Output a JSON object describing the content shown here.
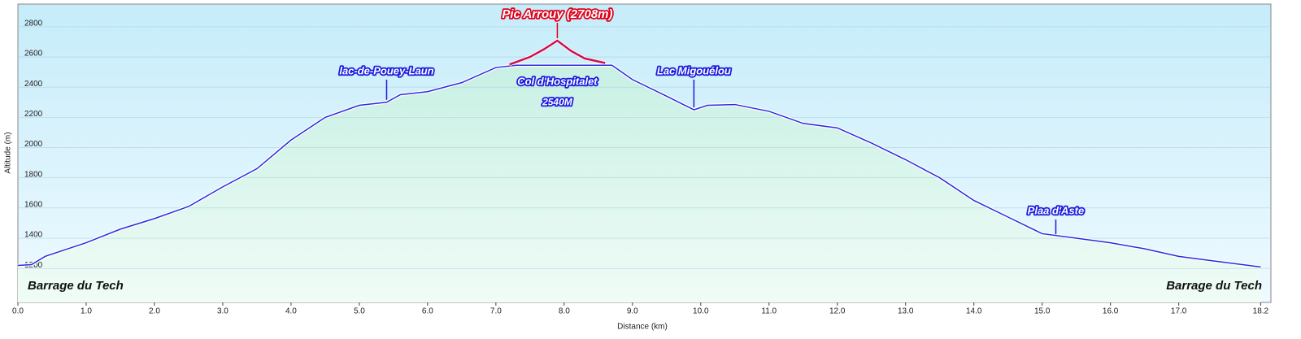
{
  "chart_data": {
    "type": "line",
    "x_label": "Distance  (km)",
    "y_label": "Altitude (m)",
    "xlim": [
      0,
      18.35
    ],
    "ylim": [
      975,
      2950
    ],
    "xticks": [
      {
        "value": 0,
        "label": "0.0"
      },
      {
        "value": 1,
        "label": "1.0"
      },
      {
        "value": 2,
        "label": "2.0"
      },
      {
        "value": 3,
        "label": "3.0"
      },
      {
        "value": 4,
        "label": "4.0"
      },
      {
        "value": 5,
        "label": "5.0"
      },
      {
        "value": 6,
        "label": "6.0"
      },
      {
        "value": 7,
        "label": "7.0"
      },
      {
        "value": 8,
        "label": "8.0"
      },
      {
        "value": 9,
        "label": "9.0"
      },
      {
        "value": 10,
        "label": "10.0"
      },
      {
        "value": 11,
        "label": "11.0"
      },
      {
        "value": 12,
        "label": "12.0"
      },
      {
        "value": 13,
        "label": "13.0"
      },
      {
        "value": 14,
        "label": "14.0"
      },
      {
        "value": 15,
        "label": "15.0"
      },
      {
        "value": 16,
        "label": "16.0"
      },
      {
        "value": 17,
        "label": "17.0"
      },
      {
        "value": 18.2,
        "label": "18.2"
      }
    ],
    "yticks": [
      1200,
      1400,
      1600,
      1800,
      2000,
      2200,
      2400,
      2600,
      2800
    ],
    "grid": true,
    "series": [
      {
        "color": "#2a2ae0",
        "x": [
          0,
          0.2,
          0.4,
          1.0,
          1.5,
          2.0,
          2.5,
          3.0,
          3.5,
          4.0,
          4.5,
          5.0,
          5.4,
          5.6,
          6.0,
          6.5,
          7.0,
          7.3,
          8.7,
          9.0,
          9.5,
          9.9,
          10.1,
          10.5,
          11.0,
          11.5,
          12.0,
          12.5,
          13.0,
          13.5,
          14.0,
          14.5,
          15.0,
          15.5,
          16.0,
          16.5,
          17.0,
          17.5,
          18.2
        ],
        "values": [
          1220,
          1225,
          1280,
          1370,
          1460,
          1530,
          1610,
          1740,
          1860,
          2050,
          2200,
          2280,
          2300,
          2350,
          2370,
          2430,
          2530,
          2545,
          2545,
          2450,
          2340,
          2250,
          2280,
          2285,
          2240,
          2160,
          2130,
          2030,
          1920,
          1800,
          1650,
          1540,
          1430,
          1400,
          1370,
          1330,
          1280,
          1250,
          1210
        ]
      },
      {
        "color": "#d0104a",
        "x": [
          7.2,
          7.5,
          7.7,
          7.9,
          8.1,
          8.3,
          8.6
        ],
        "values": [
          2550,
          2600,
          2650,
          2708,
          2640,
          2590,
          2560
        ]
      }
    ],
    "annotations": [
      {
        "text": "Pic Arrouy (2708m)",
        "x": 7.9,
        "y": 2708,
        "color": "#e0001a"
      },
      {
        "text": "lac-de-Pouey-Laun",
        "x": 5.4,
        "y": 2300,
        "color": "#1a1ae0"
      },
      {
        "text": "Lac Migouélou",
        "x": 9.9,
        "y": 2250,
        "color": "#1a1ae0"
      },
      {
        "text": "Plaa d'Aste",
        "x": 15.2,
        "y": 1410,
        "color": "#1a1ae0"
      },
      {
        "text": "Col d'Hospitalet",
        "sub": "2540M",
        "x": 7.9,
        "y": 2540,
        "color": "#1a1ae0"
      }
    ],
    "corner_labels": [
      "Barrage du Tech",
      "Barrage du Tech"
    ]
  }
}
